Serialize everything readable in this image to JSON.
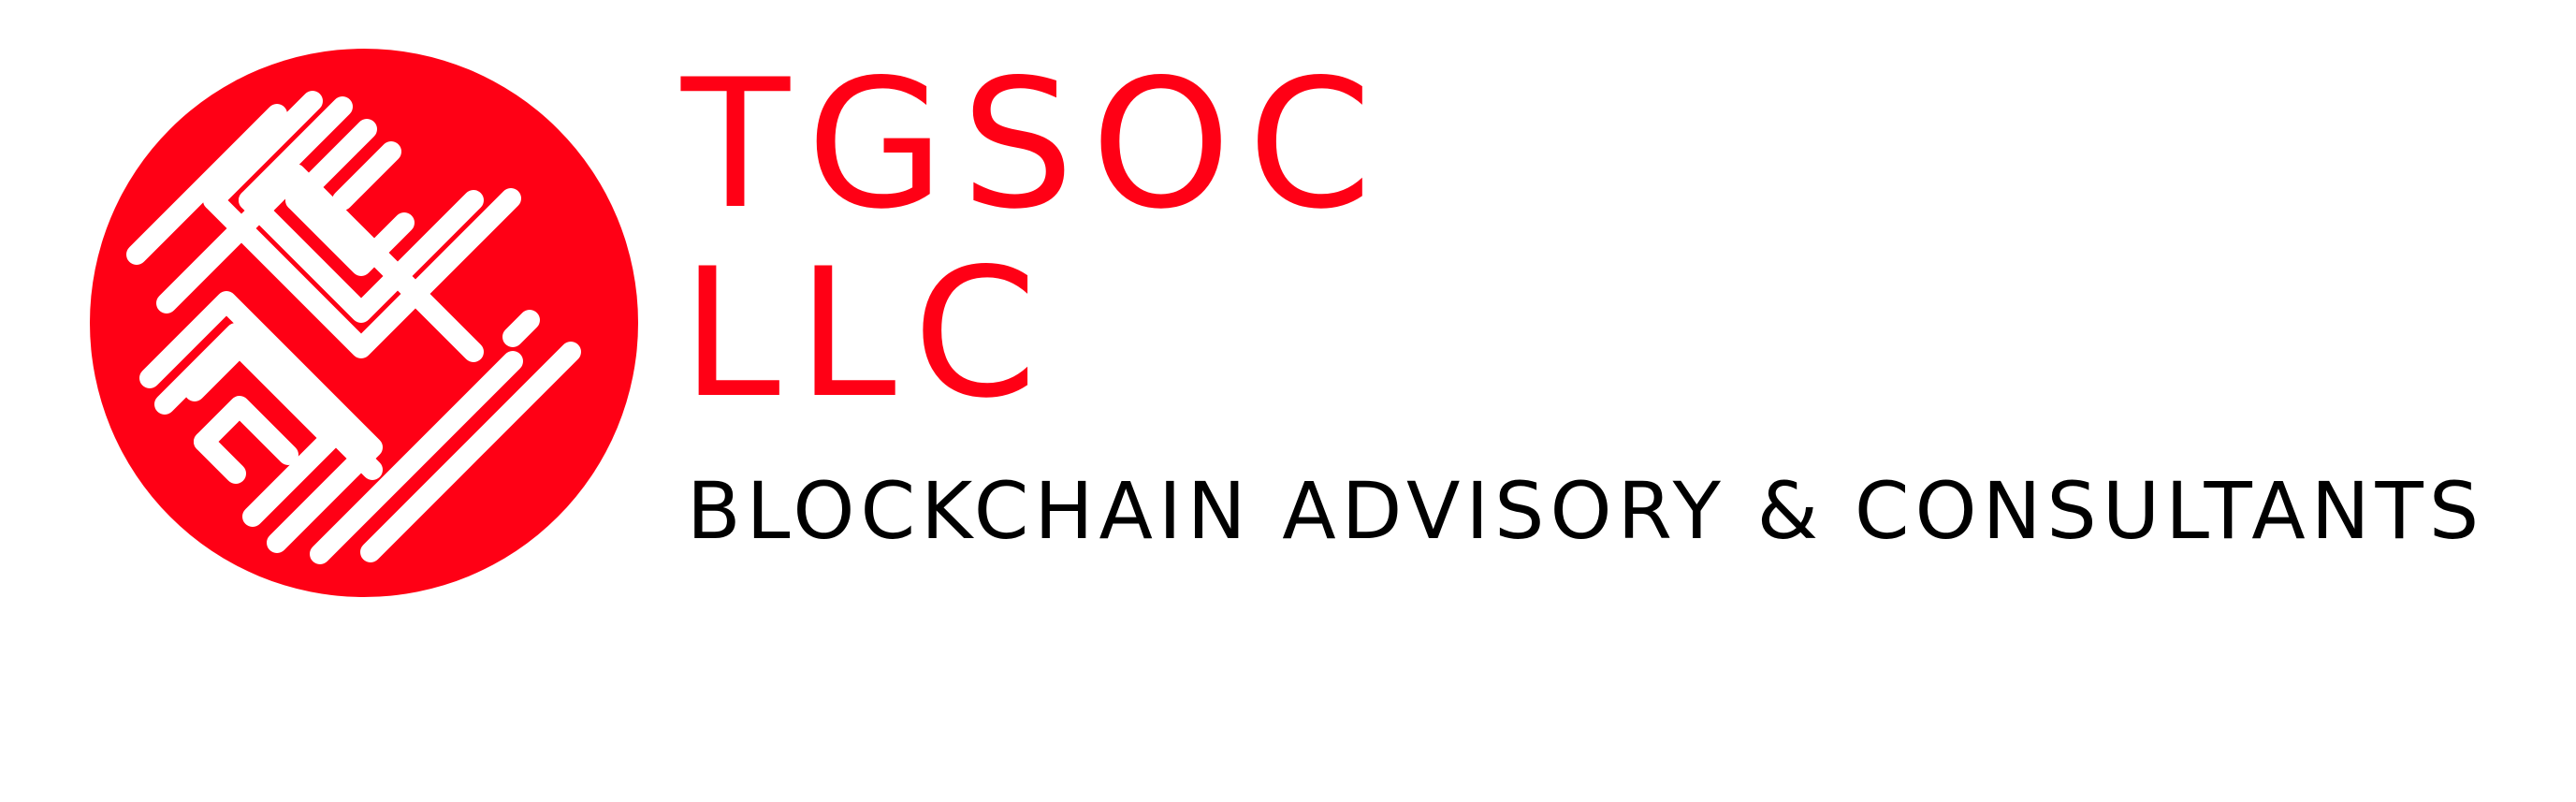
{
  "brand": {
    "name_line1": "TGSOC",
    "name_line2": "LLC",
    "tagline": "BLOCKCHAIN ADVISORY & CONSULTANTS"
  },
  "colors": {
    "brand_red": "#ff0015",
    "tagline_text": "#000000",
    "background": "#ffffff",
    "emblem_lines": "#ffffff"
  },
  "icons": {
    "emblem": "circuit-maze-logo-icon"
  }
}
